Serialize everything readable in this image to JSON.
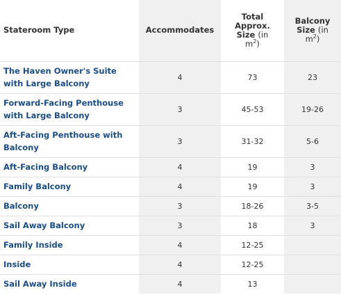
{
  "table": {
    "headers": {
      "type": "Stateroom Type",
      "accommodates": "Accommodates",
      "total_line1": "Total",
      "total_line2": "Approx.",
      "total_line3_bold": "Size",
      "total_line3_light": "(in",
      "total_line4": "m",
      "total_line4_sup": "2",
      "total_line4_close": ")",
      "balcony_line1": "Balcony",
      "balcony_line2_bold": "Size",
      "balcony_line2_light": "(in",
      "balcony_line3": "m",
      "balcony_line3_sup": "2",
      "balcony_line3_close": ")"
    },
    "rows": [
      {
        "type": "The Haven Owner's Suite with Large Balcony",
        "accommodates": "4",
        "total_size": "73",
        "balcony_size": "23"
      },
      {
        "type": "Forward-Facing Penthouse with Large Balcony",
        "accommodates": "3",
        "total_size": "45-53",
        "balcony_size": "19-26"
      },
      {
        "type": "Aft-Facing Penthouse with Balcony",
        "accommodates": "3",
        "total_size": "31-32",
        "balcony_size": "5-6"
      },
      {
        "type": "Aft-Facing Balcony",
        "accommodates": "4",
        "total_size": "19",
        "balcony_size": "3"
      },
      {
        "type": "Family Balcony",
        "accommodates": "4",
        "total_size": "19",
        "balcony_size": "3"
      },
      {
        "type": "Balcony",
        "accommodates": "3",
        "total_size": "18-26",
        "balcony_size": "3-5"
      },
      {
        "type": "Sail Away Balcony",
        "accommodates": "3",
        "total_size": "18",
        "balcony_size": "3"
      },
      {
        "type": "Family Inside",
        "accommodates": "4",
        "total_size": "12-25",
        "balcony_size": ""
      },
      {
        "type": "Inside",
        "accommodates": "4",
        "total_size": "12-25",
        "balcony_size": ""
      },
      {
        "type": "Sail Away Inside",
        "accommodates": "4",
        "total_size": "13",
        "balcony_size": ""
      }
    ]
  }
}
